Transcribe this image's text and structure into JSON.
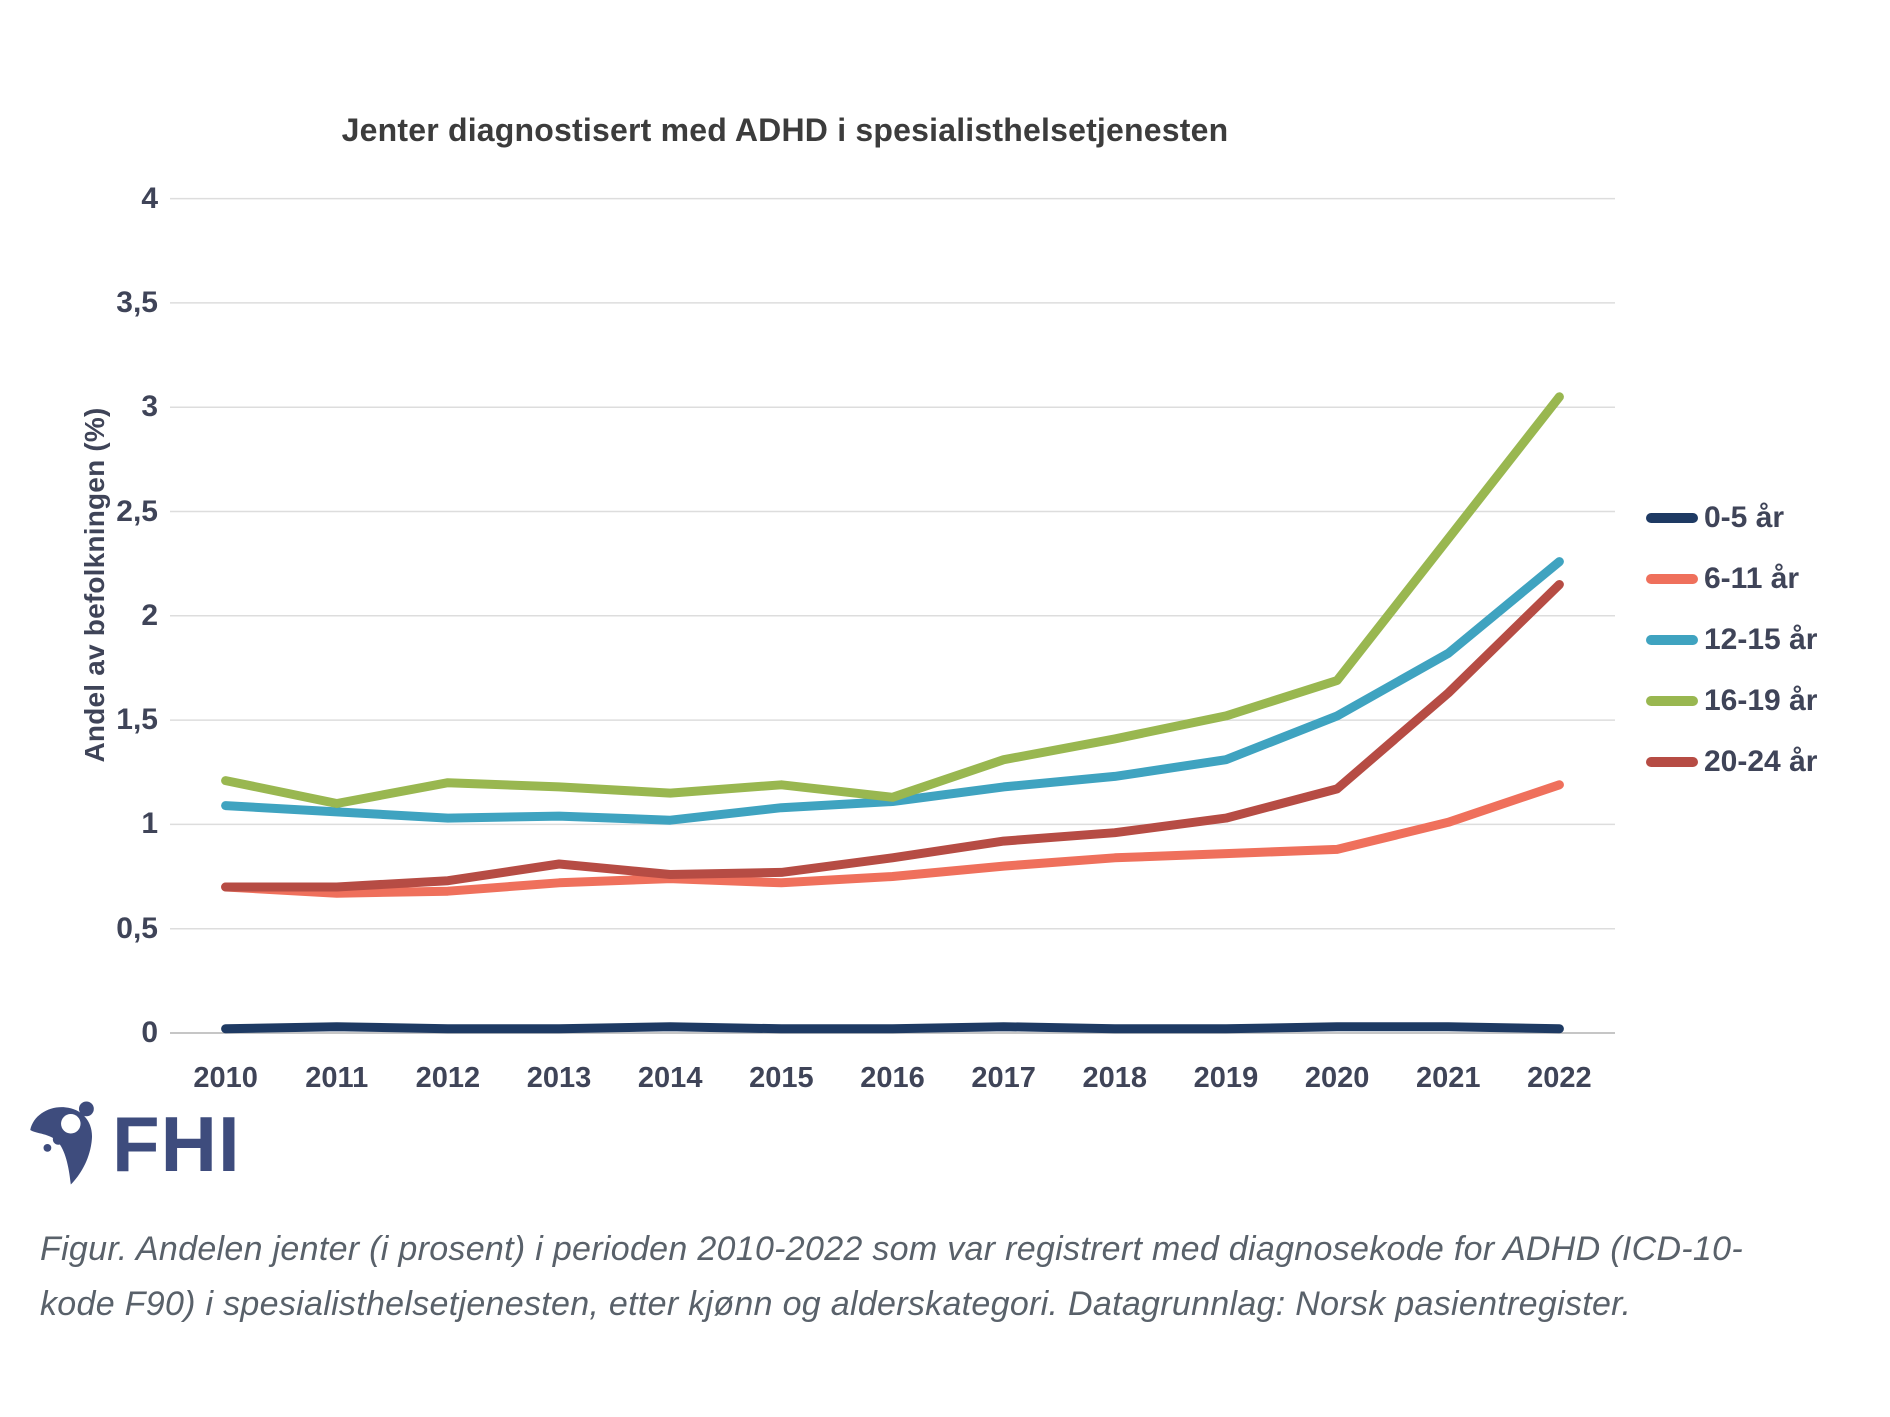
{
  "chart_data": {
    "type": "line",
    "title": "Jenter diagnostisert med ADHD i spesialisthelsetjenesten",
    "xlabel": "",
    "ylabel": "Andel av befolkningen (%)",
    "ylim": [
      0,
      4
    ],
    "y_tick_values": [
      0,
      0.5,
      1,
      1.5,
      2,
      2.5,
      3,
      3.5,
      4
    ],
    "y_tick_labels": [
      "0",
      "0,5",
      "1",
      "1,5",
      "2",
      "2,5",
      "3",
      "3,5",
      "4"
    ],
    "categories": [
      "2010",
      "2011",
      "2012",
      "2013",
      "2014",
      "2015",
      "2016",
      "2017",
      "2018",
      "2019",
      "2020",
      "2021",
      "2022"
    ],
    "grid": true,
    "legend_position": "right",
    "series": [
      {
        "name": "0-5 år",
        "color": "#1e3a63",
        "values": [
          0.02,
          0.03,
          0.02,
          0.02,
          0.03,
          0.02,
          0.02,
          0.03,
          0.02,
          0.02,
          0.03,
          0.03,
          0.02
        ]
      },
      {
        "name": "6-11 år",
        "color": "#ef705c",
        "values": [
          0.7,
          0.67,
          0.68,
          0.72,
          0.74,
          0.72,
          0.75,
          0.8,
          0.84,
          0.86,
          0.88,
          1.01,
          1.19
        ]
      },
      {
        "name": "12-15 år",
        "color": "#3fa3c0",
        "values": [
          1.09,
          1.06,
          1.03,
          1.04,
          1.02,
          1.08,
          1.11,
          1.18,
          1.23,
          1.31,
          1.52,
          1.82,
          2.26
        ]
      },
      {
        "name": "16-19 år",
        "color": "#99b750",
        "values": [
          1.21,
          1.1,
          1.2,
          1.18,
          1.15,
          1.19,
          1.13,
          1.31,
          1.41,
          1.52,
          1.69,
          2.37,
          3.05
        ]
      },
      {
        "name": "20-24 år",
        "color": "#b64c44",
        "values": [
          0.7,
          0.7,
          0.73,
          0.81,
          0.76,
          0.77,
          0.84,
          0.92,
          0.96,
          1.03,
          1.17,
          1.63,
          2.15
        ]
      }
    ]
  },
  "footer": {
    "logo_text": "FHI",
    "caption_lines": [
      "Figur. Andelen jenter (i prosent) i perioden 2010-2022 som var registrert med diagnosekode for ADHD (ICD-10-",
      "kode F90) i spesialisthelsetjenesten, etter kjønn og alderskategori. Datagrunnlag: Norsk pasientregister."
    ]
  },
  "colors": {
    "background": "#ffffff",
    "gridline": "#dddddd",
    "axis_line": "#c6c6c6",
    "title_text": "#3c3c3c",
    "axis_text": "#3f4458",
    "legend_text": "#3f4458",
    "caption_text": "#59616a",
    "logo_navy": "#3e4c7d"
  }
}
